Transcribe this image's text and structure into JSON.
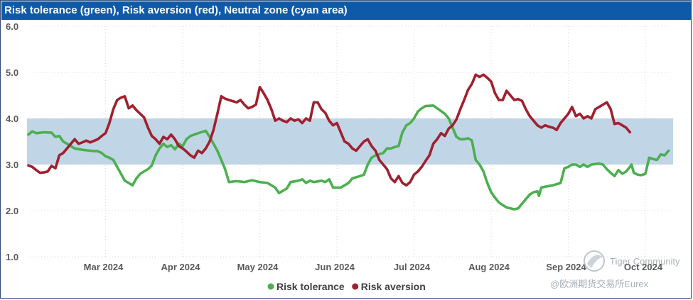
{
  "chart_data": {
    "type": "line",
    "title": "Risk tolerance (green), Risk aversion (red), Neutral zone (cyan area)",
    "xlabel": "",
    "ylabel": "",
    "ylim": [
      1.0,
      6.0
    ],
    "yticks": [
      "1.0",
      "2.0",
      "3.0",
      "4.0",
      "5.0",
      "6.0"
    ],
    "neutral_zone": [
      3.0,
      4.0
    ],
    "x_range": [
      0,
      8.15
    ],
    "xticks": [
      {
        "label": "Mar 2024",
        "pos": 1
      },
      {
        "label": "Apr 2024",
        "pos": 2
      },
      {
        "label": "May 2024",
        "pos": 3
      },
      {
        "label": "Jun 2024",
        "pos": 4
      },
      {
        "label": "Jul 2024",
        "pos": 5
      },
      {
        "label": "Aug 2024",
        "pos": 6
      },
      {
        "label": "Sep 2024",
        "pos": 7
      },
      {
        "label": "Oct 2024",
        "pos": 8
      }
    ],
    "series": [
      {
        "name": "Risk tolerance",
        "color": "#4caf50",
        "points": [
          [
            0.0,
            3.65
          ],
          [
            0.05,
            3.72
          ],
          [
            0.1,
            3.68
          ],
          [
            0.2,
            3.7
          ],
          [
            0.3,
            3.69
          ],
          [
            0.35,
            3.6
          ],
          [
            0.4,
            3.62
          ],
          [
            0.45,
            3.5
          ],
          [
            0.5,
            3.45
          ],
          [
            0.6,
            3.35
          ],
          [
            0.7,
            3.32
          ],
          [
            0.8,
            3.3
          ],
          [
            0.9,
            3.29
          ],
          [
            0.95,
            3.25
          ],
          [
            1.0,
            3.18
          ],
          [
            1.05,
            3.15
          ],
          [
            1.1,
            3.1
          ],
          [
            1.15,
            2.95
          ],
          [
            1.2,
            2.8
          ],
          [
            1.25,
            2.65
          ],
          [
            1.3,
            2.6
          ],
          [
            1.35,
            2.55
          ],
          [
            1.4,
            2.7
          ],
          [
            1.45,
            2.8
          ],
          [
            1.55,
            2.9
          ],
          [
            1.6,
            2.98
          ],
          [
            1.65,
            3.2
          ],
          [
            1.7,
            3.35
          ],
          [
            1.75,
            3.45
          ],
          [
            1.8,
            3.38
          ],
          [
            1.85,
            3.42
          ],
          [
            1.9,
            3.33
          ],
          [
            1.95,
            3.45
          ],
          [
            2.0,
            3.4
          ],
          [
            2.05,
            3.55
          ],
          [
            2.1,
            3.62
          ],
          [
            2.2,
            3.68
          ],
          [
            2.3,
            3.73
          ],
          [
            2.35,
            3.6
          ],
          [
            2.4,
            3.45
          ],
          [
            2.45,
            3.3
          ],
          [
            2.5,
            3.1
          ],
          [
            2.55,
            2.9
          ],
          [
            2.6,
            2.62
          ],
          [
            2.7,
            2.64
          ],
          [
            2.8,
            2.62
          ],
          [
            2.9,
            2.66
          ],
          [
            3.0,
            2.62
          ],
          [
            3.1,
            2.6
          ],
          [
            3.2,
            2.5
          ],
          [
            3.25,
            2.38
          ],
          [
            3.3,
            2.43
          ],
          [
            3.35,
            2.48
          ],
          [
            3.4,
            2.62
          ],
          [
            3.5,
            2.65
          ],
          [
            3.55,
            2.68
          ],
          [
            3.6,
            2.6
          ],
          [
            3.65,
            2.65
          ],
          [
            3.7,
            2.62
          ],
          [
            3.8,
            2.65
          ],
          [
            3.85,
            2.62
          ],
          [
            3.9,
            2.68
          ],
          [
            3.95,
            2.5
          ],
          [
            4.05,
            2.5
          ],
          [
            4.1,
            2.55
          ],
          [
            4.15,
            2.6
          ],
          [
            4.2,
            2.7
          ],
          [
            4.3,
            2.75
          ],
          [
            4.35,
            2.78
          ],
          [
            4.4,
            3.0
          ],
          [
            4.45,
            3.15
          ],
          [
            4.5,
            3.2
          ],
          [
            4.6,
            3.25
          ],
          [
            4.65,
            3.35
          ],
          [
            4.7,
            3.35
          ],
          [
            4.75,
            3.38
          ],
          [
            4.8,
            3.4
          ],
          [
            4.85,
            3.7
          ],
          [
            4.9,
            3.85
          ],
          [
            4.95,
            3.9
          ],
          [
            5.0,
            4.0
          ],
          [
            5.05,
            4.15
          ],
          [
            5.1,
            4.22
          ],
          [
            5.15,
            4.27
          ],
          [
            5.25,
            4.28
          ],
          [
            5.3,
            4.22
          ],
          [
            5.4,
            4.1
          ],
          [
            5.45,
            4.0
          ],
          [
            5.5,
            3.8
          ],
          [
            5.55,
            3.6
          ],
          [
            5.6,
            3.55
          ],
          [
            5.65,
            3.55
          ],
          [
            5.7,
            3.57
          ],
          [
            5.75,
            3.52
          ],
          [
            5.8,
            3.1
          ],
          [
            5.85,
            3.0
          ],
          [
            5.9,
            2.85
          ],
          [
            5.95,
            2.6
          ],
          [
            6.0,
            2.4
          ],
          [
            6.05,
            2.28
          ],
          [
            6.1,
            2.18
          ],
          [
            6.15,
            2.12
          ],
          [
            6.2,
            2.07
          ],
          [
            6.25,
            2.05
          ],
          [
            6.3,
            2.03
          ],
          [
            6.35,
            2.05
          ],
          [
            6.4,
            2.15
          ],
          [
            6.45,
            2.25
          ],
          [
            6.5,
            2.35
          ],
          [
            6.55,
            2.4
          ],
          [
            6.6,
            2.42
          ],
          [
            6.62,
            2.32
          ],
          [
            6.65,
            2.5
          ],
          [
            6.7,
            2.52
          ],
          [
            6.8,
            2.55
          ],
          [
            6.9,
            2.6
          ],
          [
            6.95,
            2.92
          ],
          [
            7.0,
            2.95
          ],
          [
            7.05,
            3.0
          ],
          [
            7.1,
            3.0
          ],
          [
            7.15,
            2.95
          ],
          [
            7.2,
            3.0
          ],
          [
            7.25,
            2.95
          ],
          [
            7.3,
            3.0
          ],
          [
            7.4,
            3.02
          ],
          [
            7.45,
            3.0
          ],
          [
            7.5,
            2.9
          ],
          [
            7.55,
            2.82
          ],
          [
            7.6,
            2.75
          ],
          [
            7.65,
            2.88
          ],
          [
            7.7,
            2.8
          ],
          [
            7.75,
            2.85
          ],
          [
            7.8,
            2.95
          ],
          [
            7.82,
            3.0
          ],
          [
            7.85,
            2.82
          ],
          [
            7.9,
            2.78
          ],
          [
            7.95,
            2.77
          ],
          [
            8.0,
            2.8
          ],
          [
            8.05,
            3.15
          ],
          [
            8.1,
            3.12
          ],
          [
            8.15,
            3.1
          ],
          [
            8.2,
            3.22
          ],
          [
            8.25,
            3.2
          ],
          [
            8.3,
            3.3
          ]
        ]
      },
      {
        "name": "Risk aversion",
        "color": "#a0202e",
        "points": [
          [
            0.0,
            2.98
          ],
          [
            0.05,
            2.95
          ],
          [
            0.1,
            2.88
          ],
          [
            0.15,
            2.82
          ],
          [
            0.2,
            2.83
          ],
          [
            0.25,
            2.85
          ],
          [
            0.3,
            2.97
          ],
          [
            0.35,
            2.92
          ],
          [
            0.4,
            3.2
          ],
          [
            0.45,
            3.25
          ],
          [
            0.5,
            3.35
          ],
          [
            0.55,
            3.45
          ],
          [
            0.6,
            3.55
          ],
          [
            0.65,
            3.45
          ],
          [
            0.7,
            3.48
          ],
          [
            0.75,
            3.52
          ],
          [
            0.8,
            3.48
          ],
          [
            0.9,
            3.55
          ],
          [
            0.95,
            3.62
          ],
          [
            1.0,
            3.68
          ],
          [
            1.05,
            3.9
          ],
          [
            1.1,
            4.2
          ],
          [
            1.15,
            4.4
          ],
          [
            1.2,
            4.45
          ],
          [
            1.25,
            4.48
          ],
          [
            1.3,
            4.22
          ],
          [
            1.35,
            4.28
          ],
          [
            1.4,
            4.18
          ],
          [
            1.45,
            4.1
          ],
          [
            1.5,
            4.02
          ],
          [
            1.55,
            3.8
          ],
          [
            1.6,
            3.62
          ],
          [
            1.65,
            3.55
          ],
          [
            1.7,
            3.45
          ],
          [
            1.75,
            3.6
          ],
          [
            1.8,
            3.55
          ],
          [
            1.85,
            3.65
          ],
          [
            1.9,
            3.55
          ],
          [
            1.95,
            3.4
          ],
          [
            2.0,
            3.35
          ],
          [
            2.05,
            3.28
          ],
          [
            2.1,
            3.2
          ],
          [
            2.15,
            3.15
          ],
          [
            2.2,
            3.3
          ],
          [
            2.25,
            3.25
          ],
          [
            2.3,
            3.35
          ],
          [
            2.35,
            3.5
          ],
          [
            2.4,
            3.75
          ],
          [
            2.45,
            4.1
          ],
          [
            2.5,
            4.48
          ],
          [
            2.55,
            4.43
          ],
          [
            2.6,
            4.4
          ],
          [
            2.7,
            4.35
          ],
          [
            2.75,
            4.4
          ],
          [
            2.8,
            4.3
          ],
          [
            2.85,
            4.22
          ],
          [
            2.9,
            4.25
          ],
          [
            2.95,
            4.3
          ],
          [
            3.0,
            4.68
          ],
          [
            3.05,
            4.55
          ],
          [
            3.1,
            4.4
          ],
          [
            3.15,
            4.2
          ],
          [
            3.2,
            3.95
          ],
          [
            3.25,
            4.0
          ],
          [
            3.3,
            3.95
          ],
          [
            3.35,
            3.92
          ],
          [
            3.4,
            4.0
          ],
          [
            3.45,
            3.95
          ],
          [
            3.5,
            3.98
          ],
          [
            3.55,
            3.9
          ],
          [
            3.6,
            4.0
          ],
          [
            3.65,
            3.95
          ],
          [
            3.7,
            4.35
          ],
          [
            3.75,
            4.35
          ],
          [
            3.8,
            4.2
          ],
          [
            3.85,
            4.12
          ],
          [
            3.9,
            3.95
          ],
          [
            3.95,
            3.85
          ],
          [
            4.0,
            3.9
          ],
          [
            4.05,
            3.7
          ],
          [
            4.1,
            3.5
          ],
          [
            4.15,
            3.45
          ],
          [
            4.2,
            3.35
          ],
          [
            4.25,
            3.3
          ],
          [
            4.3,
            3.4
          ],
          [
            4.35,
            3.5
          ],
          [
            4.4,
            3.55
          ],
          [
            4.45,
            3.4
          ],
          [
            4.5,
            3.3
          ],
          [
            4.55,
            3.1
          ],
          [
            4.6,
            3.0
          ],
          [
            4.65,
            2.9
          ],
          [
            4.7,
            2.7
          ],
          [
            4.75,
            2.62
          ],
          [
            4.8,
            2.75
          ],
          [
            4.85,
            2.6
          ],
          [
            4.9,
            2.55
          ],
          [
            4.95,
            2.62
          ],
          [
            5.0,
            2.78
          ],
          [
            5.05,
            2.85
          ],
          [
            5.1,
            2.95
          ],
          [
            5.15,
            3.08
          ],
          [
            5.2,
            3.2
          ],
          [
            5.25,
            3.45
          ],
          [
            5.3,
            3.55
          ],
          [
            5.35,
            3.68
          ],
          [
            5.4,
            3.62
          ],
          [
            5.45,
            3.78
          ],
          [
            5.5,
            3.85
          ],
          [
            5.55,
            3.98
          ],
          [
            5.6,
            4.2
          ],
          [
            5.65,
            4.4
          ],
          [
            5.7,
            4.62
          ],
          [
            5.75,
            4.75
          ],
          [
            5.8,
            4.95
          ],
          [
            5.85,
            4.9
          ],
          [
            5.9,
            4.95
          ],
          [
            5.95,
            4.88
          ],
          [
            6.0,
            4.8
          ],
          [
            6.05,
            4.55
          ],
          [
            6.1,
            4.4
          ],
          [
            6.15,
            4.4
          ],
          [
            6.2,
            4.6
          ],
          [
            6.25,
            4.5
          ],
          [
            6.3,
            4.4
          ],
          [
            6.35,
            4.42
          ],
          [
            6.4,
            4.38
          ],
          [
            6.45,
            4.2
          ],
          [
            6.5,
            4.05
          ],
          [
            6.55,
            3.95
          ],
          [
            6.6,
            3.85
          ],
          [
            6.65,
            3.8
          ],
          [
            6.7,
            3.85
          ],
          [
            6.75,
            3.82
          ],
          [
            6.8,
            3.8
          ],
          [
            6.85,
            3.75
          ],
          [
            6.9,
            3.9
          ],
          [
            6.95,
            4.0
          ],
          [
            7.0,
            4.1
          ],
          [
            7.05,
            4.25
          ],
          [
            7.1,
            4.05
          ],
          [
            7.15,
            4.1
          ],
          [
            7.2,
            4.0
          ],
          [
            7.25,
            4.05
          ],
          [
            7.3,
            4.0
          ],
          [
            7.35,
            4.2
          ],
          [
            7.4,
            4.25
          ],
          [
            7.45,
            4.3
          ],
          [
            7.5,
            4.35
          ],
          [
            7.55,
            4.2
          ],
          [
            7.6,
            3.88
          ],
          [
            7.65,
            3.9
          ],
          [
            7.7,
            3.85
          ],
          [
            7.75,
            3.8
          ],
          [
            7.8,
            3.7
          ]
        ]
      }
    ]
  },
  "watermark": {
    "line1": "Tiger Community",
    "line2": "@欧洲期货交易所Eurex"
  }
}
